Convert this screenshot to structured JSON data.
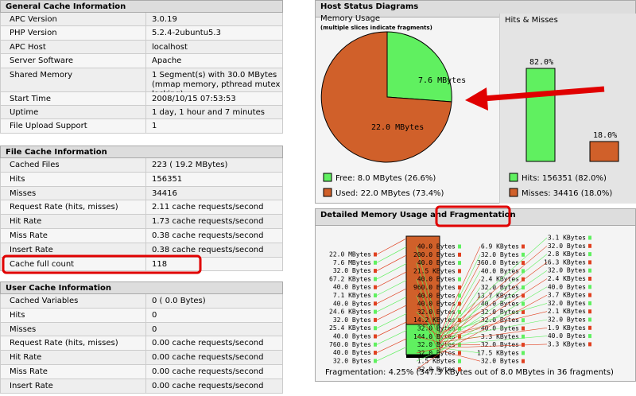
{
  "left": [
    {
      "title": "General Cache Information",
      "rows": [
        [
          "APC Version",
          "3.0.19"
        ],
        [
          "PHP Version",
          "5.2.4-2ubuntu5.3"
        ],
        [
          "APC Host",
          "localhost"
        ],
        [
          "Server Software",
          "Apache"
        ],
        [
          "Shared Memory",
          "1 Segment(s) with 30.0 MBytes",
          "(mmap memory, pthread mutex locking)"
        ],
        [
          "Start Time",
          "2008/10/15 07:53:53"
        ],
        [
          "Uptime",
          "1 day, 1 hour and 7 minutes"
        ],
        [
          "File Upload Support",
          "1"
        ]
      ]
    },
    {
      "title": "File Cache Information",
      "rows": [
        [
          "Cached Files",
          "223 ( 19.2 MBytes)"
        ],
        [
          "Hits",
          "156351"
        ],
        [
          "Misses",
          "34416"
        ],
        [
          "Request Rate (hits, misses)",
          "2.11 cache requests/second"
        ],
        [
          "Hit Rate",
          "1.73 cache requests/second"
        ],
        [
          "Miss Rate",
          "0.38 cache requests/second"
        ],
        [
          "Insert Rate",
          "0.38 cache requests/second"
        ],
        [
          "Cache full count",
          "118"
        ]
      ]
    },
    {
      "title": "User Cache Information",
      "rows": [
        [
          "Cached Variables",
          "0 ( 0.0 Bytes)"
        ],
        [
          "Hits",
          "0"
        ],
        [
          "Misses",
          "0"
        ],
        [
          "Request Rate (hits, misses)",
          "0.00 cache requests/second"
        ],
        [
          "Hit Rate",
          "0.00 cache requests/second"
        ],
        [
          "Miss Rate",
          "0.00 cache requests/second"
        ],
        [
          "Insert Rate",
          "0.00 cache requests/second"
        ]
      ]
    }
  ],
  "host_status": {
    "title": "Host Status Diagrams",
    "memory_title": "Memory Usage",
    "memory_note": "(multiple slices indicate fragments)",
    "hits_title": "Hits & Misses",
    "pie_free": "7.6 MBytes",
    "pie_used": "22.0 MBytes",
    "bar_hits": "82.0%",
    "bar_misses": "18.0%",
    "legend_free": "Free: 8.0 MBytes (26.6%)",
    "legend_used": "Used: 22.0 MBytes (73.4%)",
    "legend_hits": "Hits: 156351 (82.0%)",
    "legend_misses": "Misses: 34416 (18.0%)"
  },
  "fragmentation": {
    "title": "Detailed Memory Usage and Fragmentation",
    "columns": [
      [
        "22.0 MBytes",
        "7.6 MBytes",
        "32.0 Bytes",
        "67.2 KBytes",
        "40.0 Bytes",
        "7.1 KBytes",
        "40.0 Bytes",
        "24.6 KBytes",
        "32.0 Bytes",
        "25.4 KBytes",
        "40.0 Bytes",
        "760.0 Bytes",
        "40.0 Bytes",
        "32.0 Bytes"
      ],
      [
        "40.0 Bytes",
        "200.0 Bytes",
        "40.0 Bytes",
        "21.5 KBytes",
        "40.0 Bytes",
        "960.0 Bytes",
        "40.0 Bytes",
        "40.0 Bytes",
        "32.0 Bytes",
        "14.2 KBytes",
        "32.0 Bytes",
        "144.0 Bytes",
        "32.0 Bytes",
        "32.0 Bytes",
        "1.5 KBytes",
        "32.0 Bytes"
      ],
      [
        "6.9 KBytes",
        "32.0 Bytes",
        "360.0 Bytes",
        "40.0 Bytes",
        "2.4 KBytes",
        "32.0 Bytes",
        "13.7 KBytes",
        "40.0 Bytes",
        "32.0 Bytes",
        "32.0 Bytes",
        "40.0 Bytes",
        "3.3 KBytes",
        "32.0 Bytes",
        "17.5 KBytes",
        "32.0 Bytes"
      ],
      [
        "3.1 KBytes",
        "32.0 Bytes",
        "2.8 KBytes",
        "16.3 KBytes",
        "32.0 Bytes",
        "2.4 KBytes",
        "40.0 Bytes",
        "3.7 KBytes",
        "32.0 Bytes",
        "2.1 KBytes",
        "32.0 Bytes",
        "1.9 KBytes",
        "40.0 Bytes",
        "3.3 KBytes"
      ]
    ],
    "summary": "Fragmentation: 4.25% (347.3 KBytes out of 8.0 MBytes in 36 fragments)"
  }
}
